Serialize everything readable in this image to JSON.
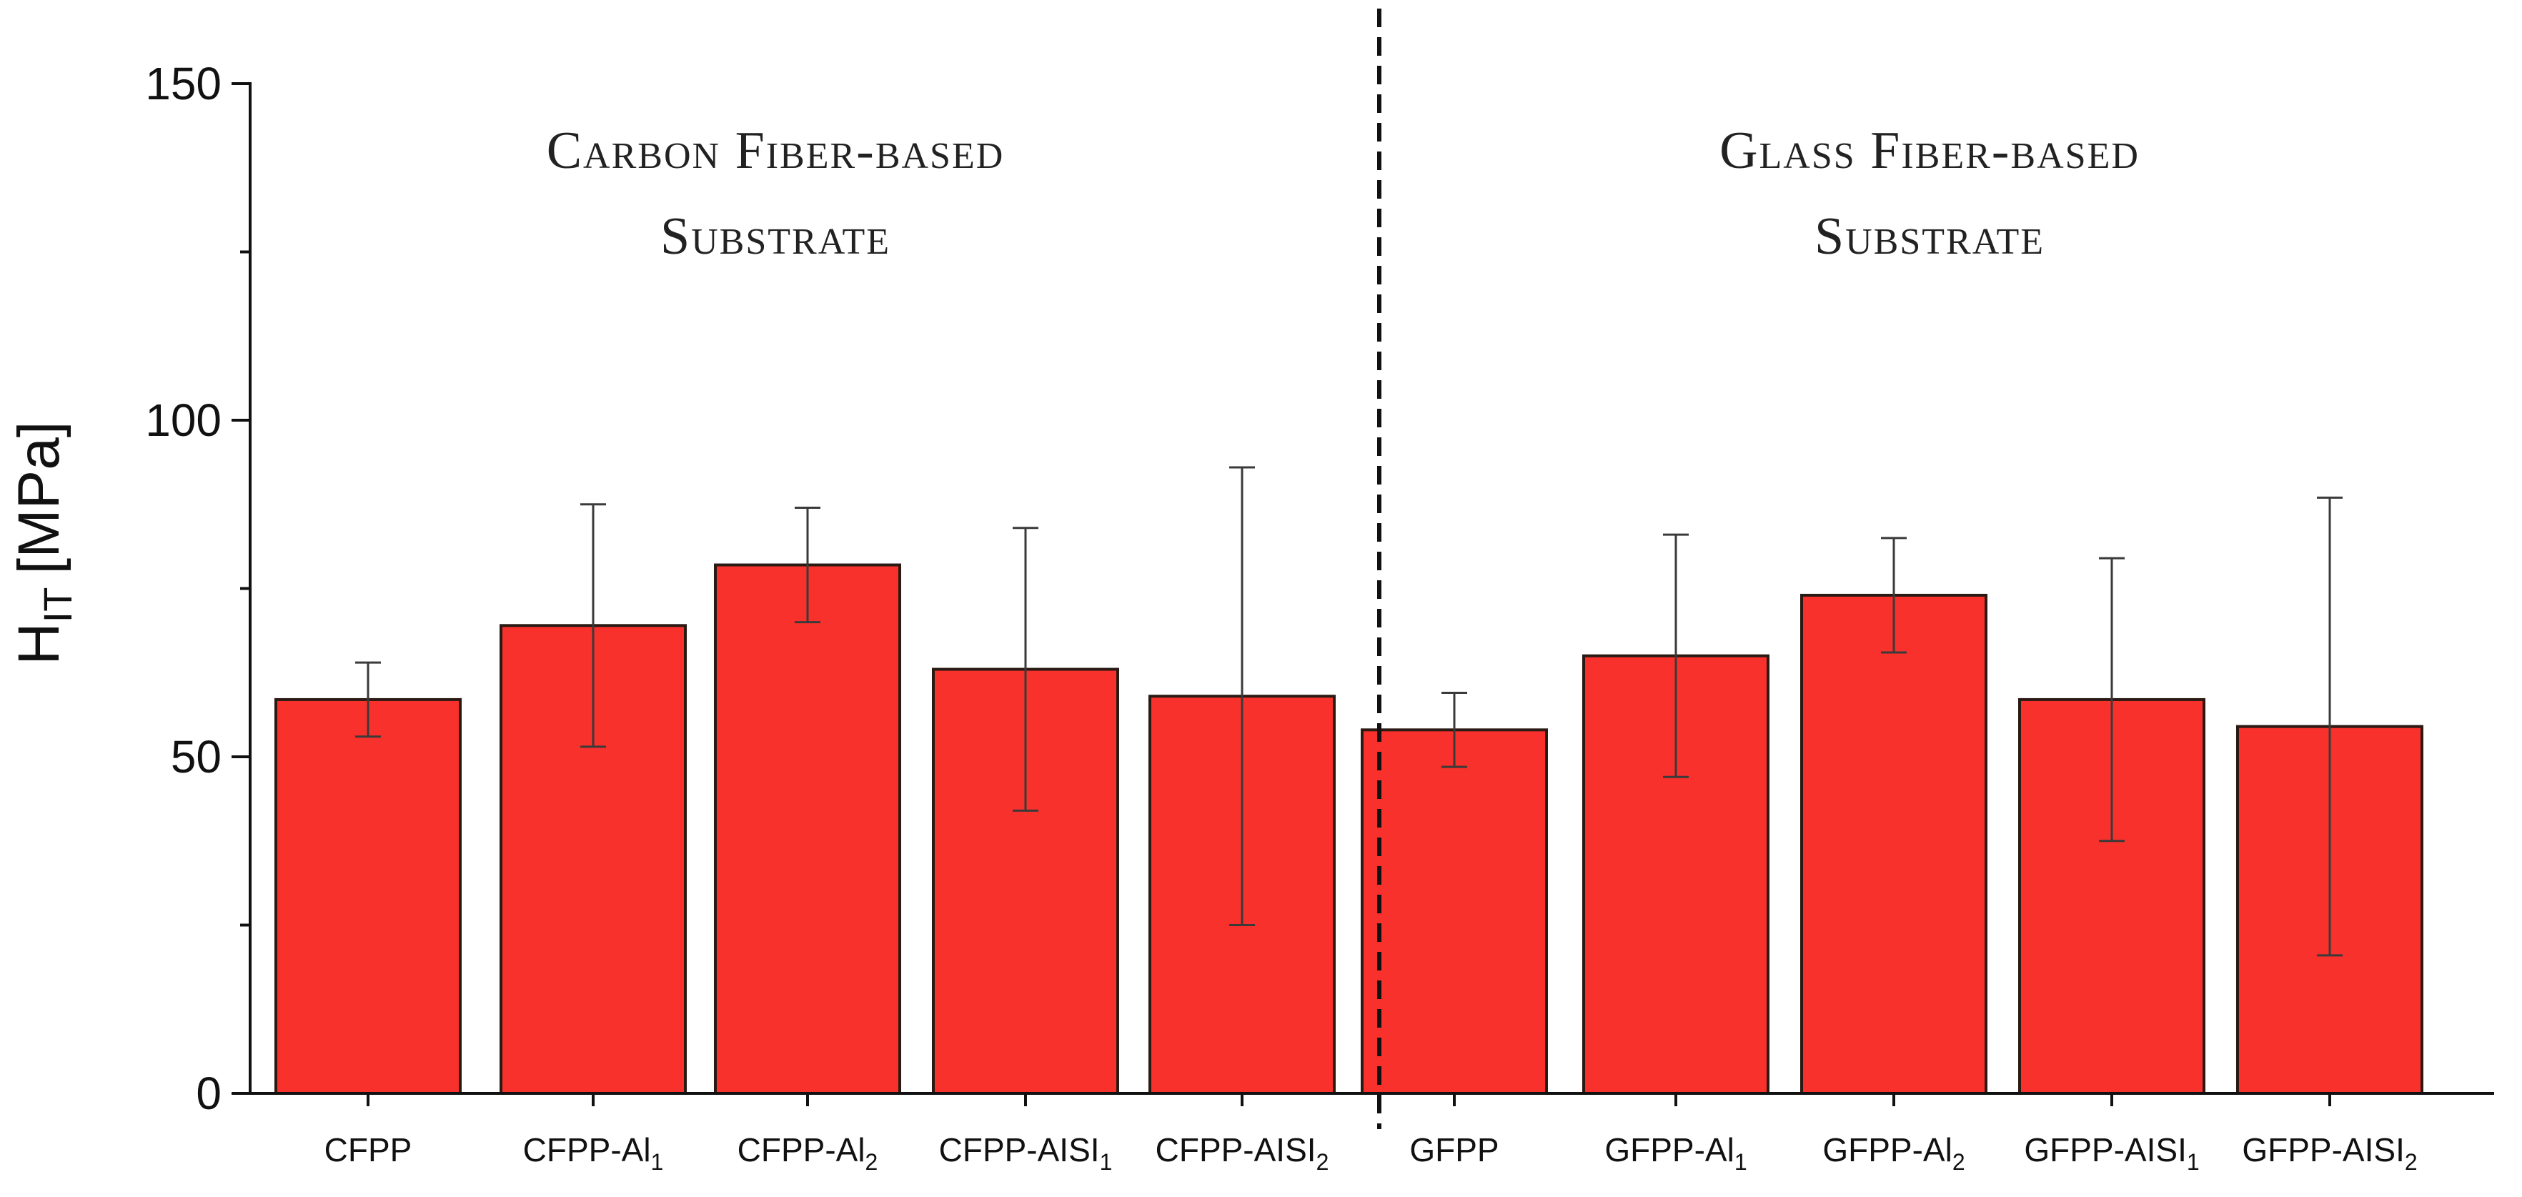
{
  "chart_data": {
    "type": "bar",
    "ylabel": "H",
    "ylabel_subscript": "IT",
    "ylabel_unit": "[MPa]",
    "xlabel": "",
    "ylim": [
      0,
      150
    ],
    "yticks": [
      0,
      50,
      100,
      150
    ],
    "grid": false,
    "group_titles": [
      {
        "line1": "Carbon Fiber-based",
        "line2": "Substrate"
      },
      {
        "line1": "Glass Fiber-based",
        "line2": "Substrate"
      }
    ],
    "categories": [
      {
        "base": "CFPP",
        "sub": ""
      },
      {
        "base": "CFPP-Al",
        "sub": "1"
      },
      {
        "base": "CFPP-Al",
        "sub": "2"
      },
      {
        "base": "CFPP-AISI",
        "sub": "1"
      },
      {
        "base": "CFPP-AISI",
        "sub": "2"
      },
      {
        "base": "GFPP",
        "sub": ""
      },
      {
        "base": "GFPP-Al",
        "sub": "1"
      },
      {
        "base": "GFPP-Al",
        "sub": "2"
      },
      {
        "base": "GFPP-AISI",
        "sub": "1"
      },
      {
        "base": "GFPP-AISI",
        "sub": "2"
      }
    ],
    "values": [
      58.5,
      69.5,
      78.5,
      63,
      59,
      54,
      65,
      74,
      58.5,
      54.5
    ],
    "error": [
      5.5,
      18,
      8.5,
      21,
      34,
      5.5,
      18,
      8.5,
      21,
      34
    ],
    "colors": {
      "bar": "#f8312c",
      "edge": "#2a1a14"
    }
  }
}
